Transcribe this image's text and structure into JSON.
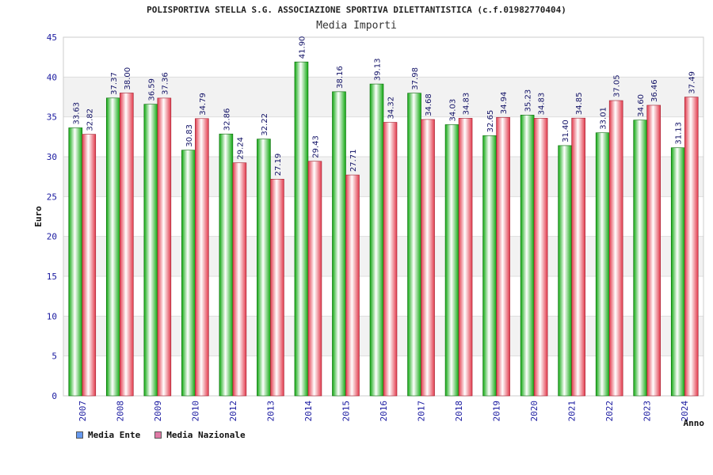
{
  "title": "POLISPORTIVA STELLA S.G. ASSOCIAZIONE SPORTIVA DILETTANTISTICA (c.f.01982770404)",
  "subtitle": "Media Importi",
  "chart_data": {
    "type": "bar",
    "ylabel": "Euro",
    "xlabel": "Anno",
    "ylim": [
      0,
      45
    ],
    "yticks": [
      0,
      5,
      10,
      15,
      20,
      25,
      30,
      35,
      40,
      45
    ],
    "grid": true,
    "categories": [
      "2007",
      "2008",
      "2009",
      "2010",
      "2012",
      "2013",
      "2014",
      "2015",
      "2016",
      "2017",
      "2018",
      "2019",
      "2020",
      "2021",
      "2022",
      "2023",
      "2024"
    ],
    "series": [
      {
        "name": "Media Ente",
        "color": "#0fa80f",
        "legend_color": "#6699ee",
        "values": [
          33.63,
          37.37,
          36.59,
          30.83,
          32.86,
          32.22,
          41.9,
          38.16,
          39.13,
          37.98,
          34.03,
          32.65,
          35.23,
          31.4,
          33.01,
          34.6,
          31.13
        ],
        "labels": [
          "33.63",
          "37.37",
          "36.59",
          "30.83",
          "32.86",
          "32.22",
          "41.90",
          "38.16",
          "39.13",
          "37.98",
          "34.03",
          "32.65",
          "35.23",
          "31.40",
          "33.01",
          "34.60",
          "31.13"
        ]
      },
      {
        "name": "Media Nazionale",
        "color": "#e23a4c",
        "legend_color": "#e07aa6",
        "values": [
          32.82,
          38.0,
          37.36,
          34.79,
          29.24,
          27.19,
          29.43,
          27.71,
          34.32,
          34.68,
          34.83,
          34.94,
          34.83,
          34.85,
          37.05,
          36.46,
          37.49
        ],
        "labels": [
          "32.82",
          "38.00",
          "37.36",
          "34.79",
          "29.24",
          "27.19",
          "29.43",
          "27.71",
          "34.32",
          "34.68",
          "34.83",
          "34.94",
          "34.83",
          "34.85",
          "37.05",
          "36.46",
          "37.49"
        ]
      }
    ],
    "legend": "bottom-left"
  },
  "colors": {
    "axis_text": "#1a1aa0",
    "label_text": "#111166",
    "grid": "#dddddd",
    "band": "#f2f2f2"
  }
}
